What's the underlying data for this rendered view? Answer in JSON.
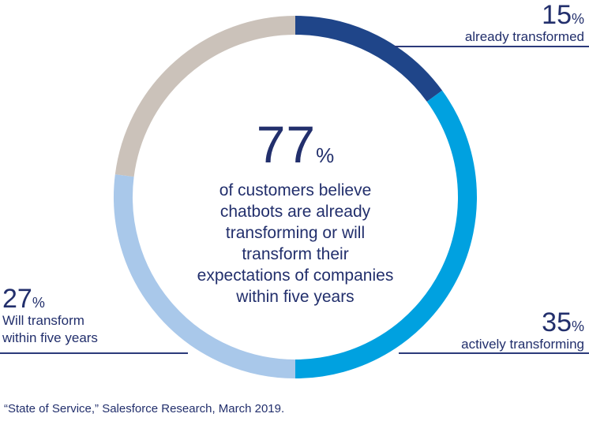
{
  "chart_data": {
    "type": "pie",
    "variant": "donut",
    "title": "77% of customers believe chatbots are already transforming or will transform their expectations of companies within five years",
    "segments": [
      {
        "label": "already transformed",
        "value": 15,
        "color": "#1f4589"
      },
      {
        "label": "actively transforming",
        "value": 35,
        "color": "#00a1e0"
      },
      {
        "label": "Will transform within five years",
        "value": 27,
        "color": "#a9c8ea"
      },
      {
        "label": "",
        "value": 23,
        "color": "#cbc2ba"
      }
    ]
  },
  "center": {
    "value": "77",
    "unit": "%",
    "lines": [
      "of customers believe",
      "chatbots are already",
      "transforming or will",
      "transform their",
      "expectations of companies",
      "within five years"
    ]
  },
  "labels": {
    "already": {
      "value": "15",
      "unit": "%",
      "text": "already transformed"
    },
    "actively": {
      "value": "35",
      "unit": "%",
      "text": "actively transforming"
    },
    "will": {
      "value": "27",
      "unit": "%",
      "line1": "Will transform",
      "line2": "within five years"
    }
  },
  "footnote": "“State of Service,” Salesforce Research, March 2019."
}
